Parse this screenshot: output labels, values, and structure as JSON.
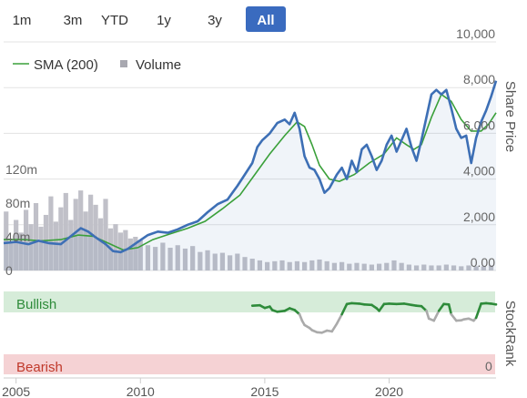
{
  "range_selector": {
    "buttons": [
      "1m",
      "3m",
      "YTD",
      "1y",
      "3y",
      "All"
    ],
    "active": "All",
    "accent": "#3a6bbf"
  },
  "legend": {
    "sma_label": "SMA (200)",
    "volume_label": "Volume"
  },
  "chart_data": {
    "type": "line",
    "x_range": [
      2004.5,
      2024.3
    ],
    "x_ticks": [
      {
        "value": 2005,
        "label": "2005"
      },
      {
        "value": 2010,
        "label": "2010"
      },
      {
        "value": 2015,
        "label": "2015"
      },
      {
        "value": 2020,
        "label": "2020"
      }
    ],
    "price_axis": {
      "title": "Share Price",
      "range": [
        0,
        10000
      ],
      "ticks": [
        {
          "value": 0,
          "label": "0.00"
        },
        {
          "value": 2000,
          "label": "2,000"
        },
        {
          "value": 4000,
          "label": "4,000"
        },
        {
          "value": 6000,
          "label": "6,000"
        },
        {
          "value": 8000,
          "label": "8,000"
        },
        {
          "value": 10000,
          "label": "10,000"
        }
      ]
    },
    "volume_axis": {
      "range": [
        0,
        120
      ],
      "unit": "m",
      "ticks": [
        {
          "value": 0,
          "label": "0"
        },
        {
          "value": 40,
          "label": "40m"
        },
        {
          "value": 80,
          "label": "80m"
        },
        {
          "value": 120,
          "label": "120m"
        }
      ]
    },
    "series": [
      {
        "name": "Price",
        "color": "#3d6fb5",
        "points": [
          [
            2004.5,
            1200
          ],
          [
            2005.0,
            1250
          ],
          [
            2005.5,
            1150
          ],
          [
            2005.9,
            1300
          ],
          [
            2006.3,
            1200
          ],
          [
            2006.8,
            1150
          ],
          [
            2007.2,
            1500
          ],
          [
            2007.6,
            1850
          ],
          [
            2007.9,
            1700
          ],
          [
            2008.2,
            1450
          ],
          [
            2008.6,
            1150
          ],
          [
            2008.9,
            850
          ],
          [
            2009.2,
            800
          ],
          [
            2009.5,
            950
          ],
          [
            2009.9,
            1250
          ],
          [
            2010.3,
            1550
          ],
          [
            2010.7,
            1700
          ],
          [
            2011.1,
            1650
          ],
          [
            2011.5,
            1800
          ],
          [
            2011.9,
            2000
          ],
          [
            2012.3,
            2150
          ],
          [
            2012.7,
            2550
          ],
          [
            2013.1,
            2900
          ],
          [
            2013.5,
            3100
          ],
          [
            2013.9,
            3700
          ],
          [
            2014.2,
            4200
          ],
          [
            2014.5,
            4700
          ],
          [
            2014.7,
            5400
          ],
          [
            2014.9,
            5700
          ],
          [
            2015.2,
            6000
          ],
          [
            2015.5,
            6450
          ],
          [
            2015.8,
            6600
          ],
          [
            2016.0,
            6400
          ],
          [
            2016.2,
            6900
          ],
          [
            2016.4,
            6200
          ],
          [
            2016.6,
            5000
          ],
          [
            2016.8,
            4500
          ],
          [
            2017.0,
            4400
          ],
          [
            2017.2,
            4000
          ],
          [
            2017.4,
            3400
          ],
          [
            2017.6,
            3600
          ],
          [
            2017.9,
            4200
          ],
          [
            2018.1,
            4500
          ],
          [
            2018.3,
            4000
          ],
          [
            2018.5,
            4800
          ],
          [
            2018.7,
            4300
          ],
          [
            2018.9,
            5300
          ],
          [
            2019.1,
            5500
          ],
          [
            2019.3,
            5000
          ],
          [
            2019.5,
            4400
          ],
          [
            2019.7,
            4800
          ],
          [
            2019.9,
            5500
          ],
          [
            2020.1,
            5900
          ],
          [
            2020.3,
            5200
          ],
          [
            2020.5,
            5700
          ],
          [
            2020.7,
            6200
          ],
          [
            2020.9,
            5400
          ],
          [
            2021.1,
            4800
          ],
          [
            2021.3,
            5700
          ],
          [
            2021.5,
            6700
          ],
          [
            2021.7,
            7700
          ],
          [
            2021.9,
            7900
          ],
          [
            2022.1,
            7700
          ],
          [
            2022.3,
            7900
          ],
          [
            2022.5,
            7100
          ],
          [
            2022.7,
            6200
          ],
          [
            2022.9,
            5800
          ],
          [
            2023.1,
            5900
          ],
          [
            2023.3,
            4700
          ],
          [
            2023.5,
            5800
          ],
          [
            2023.7,
            6500
          ],
          [
            2023.9,
            7000
          ],
          [
            2024.1,
            7600
          ],
          [
            2024.3,
            8300
          ]
        ]
      },
      {
        "name": "SMA (200)",
        "color": "#3aa03a",
        "points": [
          [
            2004.5,
            1350
          ],
          [
            2005.3,
            1350
          ],
          [
            2006.0,
            1300
          ],
          [
            2006.8,
            1350
          ],
          [
            2007.5,
            1550
          ],
          [
            2008.1,
            1500
          ],
          [
            2008.8,
            1150
          ],
          [
            2009.3,
            900
          ],
          [
            2009.9,
            1000
          ],
          [
            2010.5,
            1350
          ],
          [
            2011.2,
            1600
          ],
          [
            2011.9,
            1850
          ],
          [
            2012.6,
            2150
          ],
          [
            2013.3,
            2700
          ],
          [
            2014.0,
            3300
          ],
          [
            2014.6,
            4200
          ],
          [
            2015.2,
            5100
          ],
          [
            2015.8,
            5900
          ],
          [
            2016.3,
            6500
          ],
          [
            2016.6,
            6300
          ],
          [
            2016.9,
            5500
          ],
          [
            2017.2,
            4600
          ],
          [
            2017.6,
            4000
          ],
          [
            2018.0,
            3900
          ],
          [
            2018.6,
            4200
          ],
          [
            2019.2,
            4700
          ],
          [
            2019.8,
            5100
          ],
          [
            2020.3,
            5800
          ],
          [
            2020.7,
            5500
          ],
          [
            2021.0,
            5300
          ],
          [
            2021.3,
            5500
          ],
          [
            2021.7,
            6700
          ],
          [
            2022.1,
            7700
          ],
          [
            2022.5,
            7400
          ],
          [
            2022.9,
            6600
          ],
          [
            2023.3,
            6100
          ],
          [
            2023.7,
            6100
          ],
          [
            2024.0,
            6400
          ],
          [
            2024.3,
            6900
          ]
        ]
      },
      {
        "name": "Volume",
        "color": "#c0c0c8",
        "points": [
          [
            2004.6,
            70
          ],
          [
            2004.8,
            35
          ],
          [
            2005.0,
            60
          ],
          [
            2005.2,
            45
          ],
          [
            2005.4,
            72
          ],
          [
            2005.6,
            55
          ],
          [
            2005.8,
            80
          ],
          [
            2006.0,
            52
          ],
          [
            2006.2,
            66
          ],
          [
            2006.4,
            88
          ],
          [
            2006.6,
            58
          ],
          [
            2006.8,
            75
          ],
          [
            2007.0,
            92
          ],
          [
            2007.2,
            60
          ],
          [
            2007.4,
            85
          ],
          [
            2007.6,
            95
          ],
          [
            2007.8,
            70
          ],
          [
            2008.0,
            90
          ],
          [
            2008.2,
            78
          ],
          [
            2008.4,
            62
          ],
          [
            2008.6,
            85
          ],
          [
            2008.8,
            50
          ],
          [
            2009.0,
            55
          ],
          [
            2009.2,
            45
          ],
          [
            2009.4,
            48
          ],
          [
            2009.6,
            38
          ],
          [
            2009.8,
            40
          ],
          [
            2010.0,
            36
          ],
          [
            2010.3,
            30
          ],
          [
            2010.6,
            28
          ],
          [
            2010.9,
            33
          ],
          [
            2011.2,
            27
          ],
          [
            2011.5,
            30
          ],
          [
            2011.8,
            26
          ],
          [
            2012.1,
            29
          ],
          [
            2012.4,
            22
          ],
          [
            2012.7,
            24
          ],
          [
            2013.0,
            20
          ],
          [
            2013.3,
            21
          ],
          [
            2013.6,
            18
          ],
          [
            2013.9,
            20
          ],
          [
            2014.2,
            16
          ],
          [
            2014.5,
            14
          ],
          [
            2014.8,
            12
          ],
          [
            2015.1,
            10
          ],
          [
            2015.4,
            11
          ],
          [
            2015.7,
            12
          ],
          [
            2016.0,
            10
          ],
          [
            2016.3,
            11
          ],
          [
            2016.6,
            10
          ],
          [
            2016.9,
            12
          ],
          [
            2017.2,
            13
          ],
          [
            2017.5,
            11
          ],
          [
            2017.8,
            9
          ],
          [
            2018.1,
            10
          ],
          [
            2018.4,
            8
          ],
          [
            2018.7,
            9
          ],
          [
            2019.0,
            8
          ],
          [
            2019.3,
            7
          ],
          [
            2019.6,
            8
          ],
          [
            2019.9,
            9
          ],
          [
            2020.2,
            12
          ],
          [
            2020.5,
            9
          ],
          [
            2020.8,
            7
          ],
          [
            2021.1,
            6
          ],
          [
            2021.4,
            7
          ],
          [
            2021.7,
            6
          ],
          [
            2022.0,
            6
          ],
          [
            2022.3,
            7
          ],
          [
            2022.6,
            6
          ],
          [
            2022.9,
            5
          ],
          [
            2023.2,
            6
          ],
          [
            2023.5,
            5
          ],
          [
            2023.8,
            5
          ],
          [
            2024.1,
            6
          ]
        ]
      }
    ],
    "stockrank": {
      "title": "StockRank",
      "labels": {
        "top": "Bullish",
        "bottom": "Bearish"
      },
      "scale_label": "0",
      "range": [
        0,
        100
      ],
      "colors": {
        "bullish": "#2e8b3a",
        "neutral": "#aaaaaa",
        "bullish_band": "#d6ecd9",
        "bearish_band": "#f5d2d4",
        "bearish_text": "#c0392b"
      },
      "points": [
        [
          2014.5,
          90
        ],
        [
          2014.8,
          91
        ],
        [
          2015.0,
          85
        ],
        [
          2015.2,
          88
        ],
        [
          2015.3,
          80
        ],
        [
          2015.5,
          76
        ],
        [
          2015.8,
          78
        ],
        [
          2016.0,
          84
        ],
        [
          2016.2,
          80
        ],
        [
          2016.4,
          70
        ],
        [
          2016.5,
          55
        ],
        [
          2016.6,
          45
        ],
        [
          2016.8,
          38
        ],
        [
          2016.9,
          33
        ],
        [
          2017.1,
          28
        ],
        [
          2017.3,
          27
        ],
        [
          2017.5,
          32
        ],
        [
          2017.7,
          30
        ],
        [
          2017.9,
          48
        ],
        [
          2018.1,
          70
        ],
        [
          2018.3,
          94
        ],
        [
          2018.5,
          96
        ],
        [
          2018.8,
          95
        ],
        [
          2019.0,
          93
        ],
        [
          2019.3,
          92
        ],
        [
          2019.5,
          84
        ],
        [
          2019.6,
          78
        ],
        [
          2019.8,
          94
        ],
        [
          2020.0,
          95
        ],
        [
          2020.3,
          94
        ],
        [
          2020.6,
          95
        ],
        [
          2020.9,
          92
        ],
        [
          2021.1,
          90
        ],
        [
          2021.3,
          89
        ],
        [
          2021.5,
          78
        ],
        [
          2021.6,
          60
        ],
        [
          2021.8,
          55
        ],
        [
          2022.0,
          78
        ],
        [
          2022.2,
          94
        ],
        [
          2022.4,
          93
        ],
        [
          2022.5,
          70
        ],
        [
          2022.7,
          55
        ],
        [
          2022.9,
          56
        ],
        [
          2023.0,
          58
        ],
        [
          2023.2,
          60
        ],
        [
          2023.4,
          55
        ],
        [
          2023.5,
          62
        ],
        [
          2023.7,
          95
        ],
        [
          2023.9,
          96
        ],
        [
          2024.1,
          95
        ],
        [
          2024.3,
          93
        ]
      ]
    }
  }
}
